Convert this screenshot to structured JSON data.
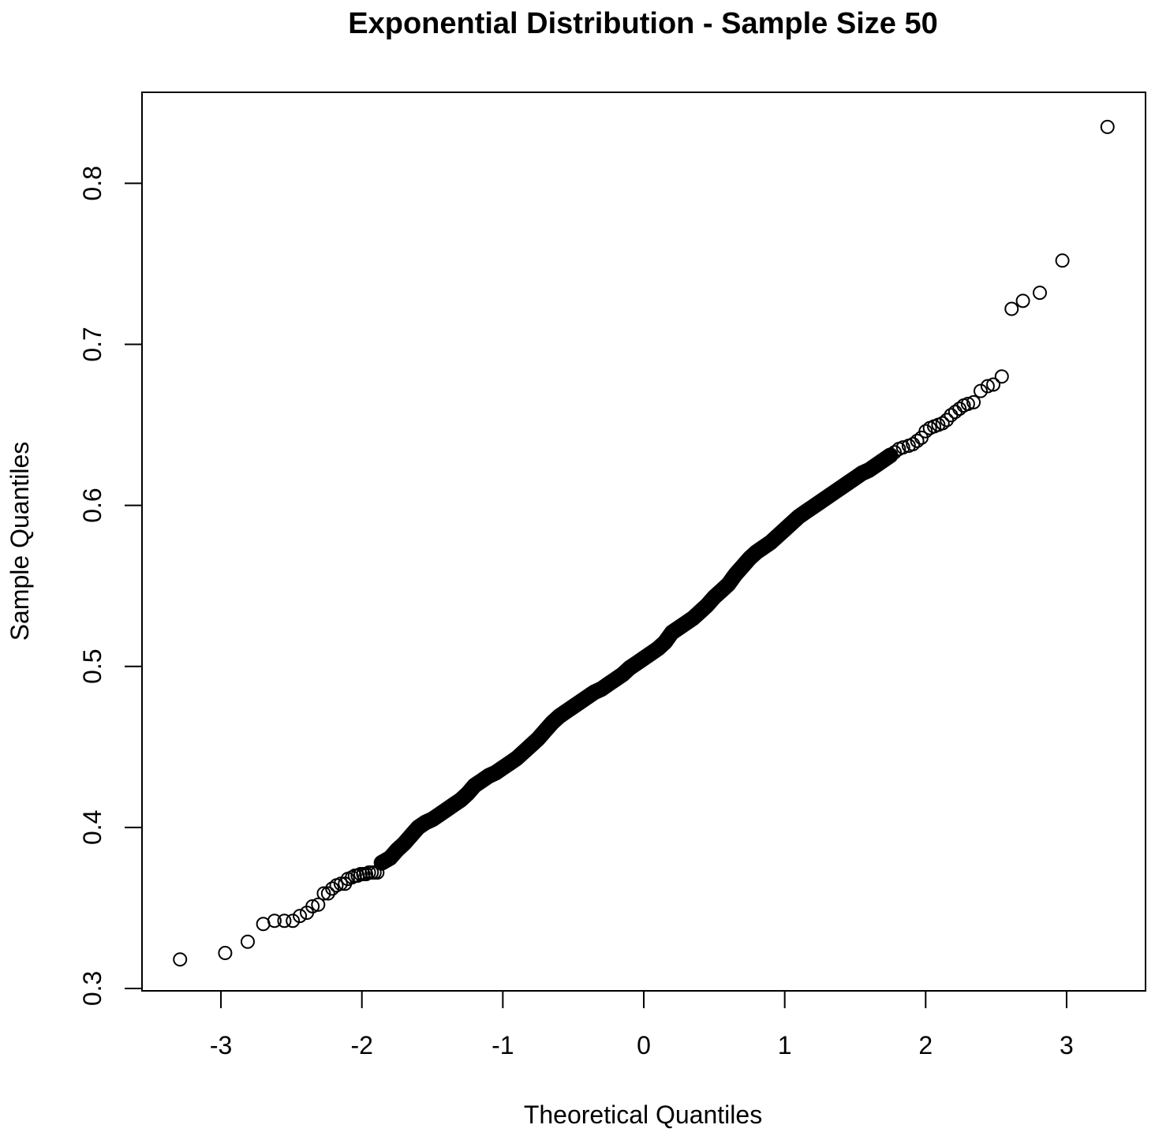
{
  "chart_data": {
    "type": "scatter",
    "title": "Exponential Distribution - Sample Size 50",
    "xlabel": "Theoretical Quantiles",
    "ylabel": "Sample Quantiles",
    "xlim": [
      -3.56,
      3.56
    ],
    "ylim": [
      0.2985,
      0.8565
    ],
    "xticks": [
      -3,
      -2,
      -1,
      0,
      1,
      2,
      3
    ],
    "xtick_labels": [
      "-3",
      "-2",
      "-1",
      "0",
      "1",
      "2",
      "3"
    ],
    "yticks": [
      0.3,
      0.4,
      0.5,
      0.6,
      0.7,
      0.8
    ],
    "ytick_labels": [
      "0.3",
      "0.4",
      "0.5",
      "0.6",
      "0.7",
      "0.8"
    ],
    "grid": false,
    "marker": "open-circle",
    "marker_color": "#000000",
    "series": [
      {
        "x": [
          -3.29,
          -2.97,
          -2.81,
          -2.7,
          -2.62,
          -2.55,
          -2.49,
          -2.44,
          -2.39,
          -2.35,
          -2.31,
          -2.27,
          -2.24,
          -2.21,
          -2.18,
          -2.15,
          -2.12,
          -2.1,
          -2.07,
          -2.05,
          -2.03,
          -2.01,
          -1.99,
          -1.97,
          -1.95,
          -1.93,
          -1.91,
          -1.89
        ],
        "y": [
          0.318,
          0.322,
          0.329,
          0.34,
          0.342,
          0.342,
          0.342,
          0.345,
          0.347,
          0.351,
          0.352,
          0.359,
          0.359,
          0.362,
          0.364,
          0.365,
          0.365,
          0.368,
          0.369,
          0.37,
          0.37,
          0.371,
          0.371,
          0.371,
          0.372,
          0.372,
          0.372,
          0.372
        ]
      },
      {
        "x": [
          -1.86,
          -1.8,
          -1.75,
          -1.7,
          -1.65,
          -1.6,
          -1.55,
          -1.5,
          -1.45,
          -1.4,
          -1.35,
          -1.3,
          -1.25,
          -1.2,
          -1.15,
          -1.1,
          -1.05,
          -1.0,
          -0.95,
          -0.9,
          -0.85,
          -0.8,
          -0.75,
          -0.7,
          -0.65,
          -0.6,
          -0.55,
          -0.5,
          -0.45,
          -0.4,
          -0.35,
          -0.3,
          -0.25,
          -0.2,
          -0.15,
          -0.1,
          -0.05,
          0.0,
          0.05,
          0.1,
          0.15,
          0.2,
          0.25,
          0.3,
          0.35,
          0.4,
          0.45,
          0.5,
          0.55,
          0.6,
          0.65,
          0.7,
          0.75,
          0.8,
          0.85,
          0.9,
          0.95,
          1.0,
          1.05,
          1.1,
          1.15,
          1.2,
          1.25,
          1.3,
          1.35,
          1.4,
          1.45,
          1.5,
          1.55,
          1.6,
          1.65,
          1.7,
          1.75
        ],
        "y": [
          0.378,
          0.381,
          0.386,
          0.39,
          0.395,
          0.4,
          0.403,
          0.405,
          0.408,
          0.411,
          0.414,
          0.417,
          0.421,
          0.426,
          0.429,
          0.432,
          0.434,
          0.437,
          0.44,
          0.443,
          0.447,
          0.451,
          0.455,
          0.46,
          0.465,
          0.469,
          0.472,
          0.475,
          0.478,
          0.481,
          0.484,
          0.486,
          0.489,
          0.492,
          0.495,
          0.499,
          0.502,
          0.505,
          0.508,
          0.511,
          0.515,
          0.521,
          0.524,
          0.527,
          0.53,
          0.534,
          0.538,
          0.543,
          0.547,
          0.551,
          0.557,
          0.562,
          0.567,
          0.571,
          0.574,
          0.577,
          0.581,
          0.585,
          0.589,
          0.593,
          0.596,
          0.599,
          0.602,
          0.605,
          0.608,
          0.611,
          0.614,
          0.617,
          0.62,
          0.622,
          0.625,
          0.628,
          0.631
        ]
      },
      {
        "x": [
          1.78,
          1.81,
          1.84,
          1.88,
          1.91,
          1.94,
          1.97,
          2.0,
          2.03,
          2.06,
          2.09,
          2.12,
          2.15,
          2.18,
          2.21,
          2.24,
          2.27,
          2.3,
          2.34,
          2.39,
          2.44,
          2.48,
          2.54,
          2.61,
          2.69,
          2.81,
          2.97,
          3.29
        ],
        "y": [
          0.633,
          0.635,
          0.636,
          0.637,
          0.638,
          0.64,
          0.642,
          0.646,
          0.648,
          0.649,
          0.65,
          0.651,
          0.653,
          0.656,
          0.658,
          0.66,
          0.662,
          0.663,
          0.664,
          0.671,
          0.674,
          0.675,
          0.68,
          0.722,
          0.727,
          0.732,
          0.752,
          0.835
        ]
      }
    ]
  }
}
